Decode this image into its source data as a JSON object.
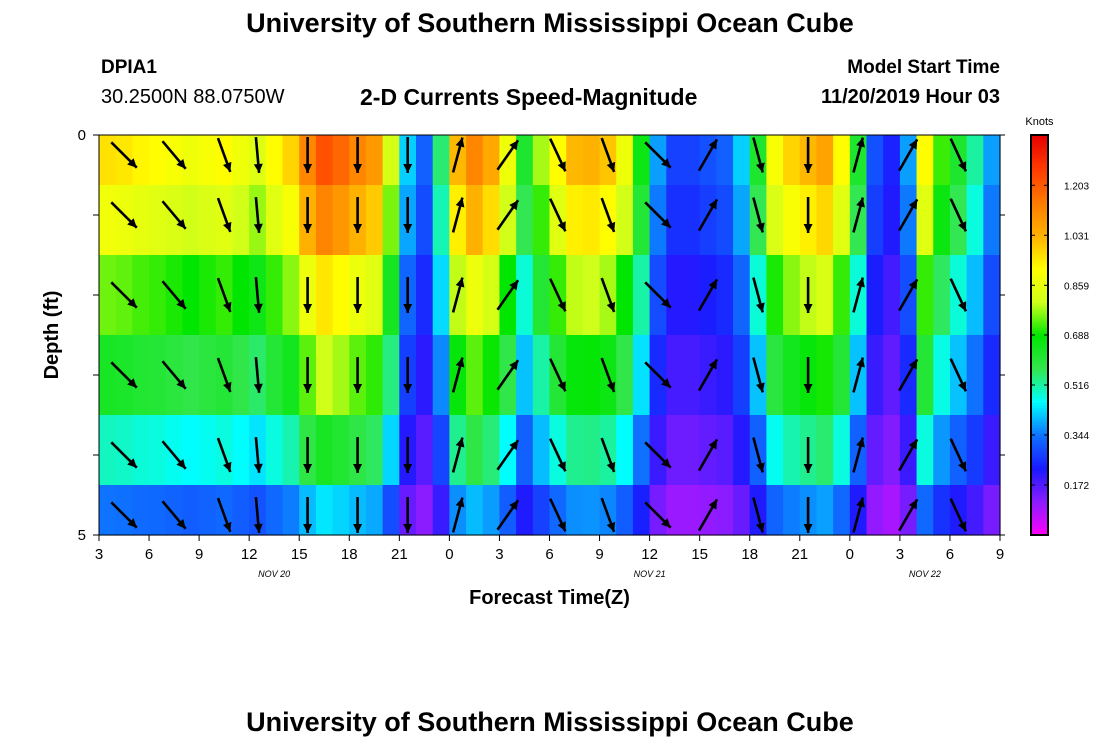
{
  "page": {
    "title_top": "University of Southern Mississippi Ocean Cube",
    "title_bottom": "University of Southern Mississippi Ocean Cube",
    "station_id": "DPIA1",
    "coordinates": "30.2500N 88.0750W",
    "model_start_label": "Model Start Time",
    "model_start_value": "11/20/2019 Hour 03"
  },
  "chart_data": {
    "type": "heatmap",
    "title": "2-D Currents Speed-Magnitude",
    "xlabel": "Forecast Time(Z)",
    "ylabel": "Depth (ft)",
    "colorbar_label": "Knots",
    "x_tick_labels": [
      "3",
      "6",
      "9",
      "12",
      "15",
      "18",
      "21",
      "0",
      "3",
      "6",
      "9",
      "12",
      "15",
      "18",
      "21",
      "0",
      "3",
      "6",
      "9"
    ],
    "x_range_hours": [
      0,
      54
    ],
    "date_labels": [
      {
        "hour": 10.5,
        "text": "NOV  20"
      },
      {
        "hour": 33,
        "text": "NOV  21"
      },
      {
        "hour": 49.5,
        "text": "NOV  22"
      }
    ],
    "y_tick_labels": [
      "0",
      "5"
    ],
    "ylim": [
      0,
      5
    ],
    "y_inverted": true,
    "colorbar_ticks": [
      1.203,
      1.031,
      0.859,
      0.688,
      0.516,
      0.344,
      0.172
    ],
    "colorbar_range": [
      0,
      1.376
    ],
    "colorscale": [
      "#ff00ff",
      "#8c1cff",
      "#1a1aff",
      "#0e72ff",
      "#00ffff",
      "#33e64d",
      "#00e600",
      "#cfff1a",
      "#ffff00",
      "#ffb000",
      "#ff7a00",
      "#ff3a00",
      "#e60000"
    ],
    "depth_layers_ft": [
      0.25,
      1.0,
      2.0,
      3.0,
      4.0,
      4.75
    ],
    "hours": [
      0,
      1,
      2,
      3,
      4,
      5,
      6,
      7,
      8,
      9,
      10,
      11,
      12,
      13,
      14,
      15,
      16,
      17,
      18,
      19,
      20,
      21,
      22,
      23,
      24,
      25,
      26,
      27,
      28,
      29,
      30,
      31,
      32,
      33,
      34,
      35,
      36,
      37,
      38,
      39,
      40,
      41,
      42,
      43,
      44,
      45,
      46,
      47,
      48,
      49,
      50,
      51,
      52,
      53
    ],
    "surface_speed_knots": [
      0.96,
      0.95,
      0.93,
      0.92,
      0.9,
      0.88,
      0.9,
      0.92,
      0.88,
      0.84,
      0.92,
      0.98,
      1.12,
      1.22,
      1.18,
      1.12,
      1.08,
      0.82,
      0.42,
      0.32,
      0.55,
      1.02,
      1.12,
      1.05,
      0.88,
      0.62,
      0.78,
      0.92,
      1.02,
      1.03,
      1.0,
      0.88,
      0.66,
      0.38,
      0.28,
      0.28,
      0.3,
      0.32,
      0.42,
      0.62,
      0.9,
      0.98,
      1.02,
      1.06,
      0.92,
      0.62,
      0.3,
      0.24,
      0.38,
      0.92,
      0.72,
      0.62,
      0.52,
      0.38
    ],
    "depth_factor": [
      1.0,
      0.92,
      0.78,
      0.66,
      0.52,
      0.36
    ],
    "arrow_hours": [
      1,
      4,
      7,
      9,
      12,
      15,
      18,
      21,
      24,
      27,
      30,
      33,
      36,
      39,
      42,
      45,
      48,
      51
    ],
    "arrow_direction_deg": [
      135,
      140,
      160,
      175,
      180,
      180,
      180,
      15,
      35,
      155,
      160,
      135,
      30,
      165,
      180,
      15,
      30,
      155
    ]
  }
}
